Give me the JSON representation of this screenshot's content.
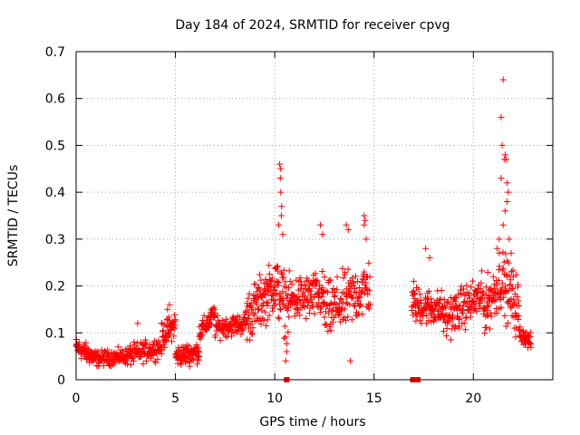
{
  "chart_data": {
    "type": "scatter",
    "title": "Day 184 of 2024, SRMTID for receiver cpvg",
    "xlabel": "GPS time / hours",
    "ylabel": "SRMTID / TECUs",
    "xlim": [
      0,
      24
    ],
    "ylim": [
      0,
      0.7
    ],
    "xticks": [
      0,
      5,
      10,
      15,
      20
    ],
    "yticks": [
      0,
      0.1,
      0.2,
      0.3,
      0.4,
      0.5,
      0.6,
      0.7
    ],
    "grid": true,
    "marker": "plus",
    "color": "#ff0000",
    "segments": [
      {
        "t0": 0.0,
        "t1": 1.0,
        "base": [
          0.07,
          0.045
        ],
        "spread": 0.018,
        "n": 80
      },
      {
        "t0": 1.0,
        "t1": 2.5,
        "base": [
          0.045,
          0.05
        ],
        "spread": 0.015,
        "n": 90
      },
      {
        "t0": 2.5,
        "t1": 4.3,
        "base": [
          0.05,
          0.07
        ],
        "spread": 0.02,
        "n": 110
      },
      {
        "t0": 4.3,
        "t1": 5.0,
        "base": [
          0.09,
          0.12
        ],
        "spread": 0.025,
        "n": 50
      },
      {
        "t0": 5.0,
        "t1": 6.2,
        "base": [
          0.05,
          0.06
        ],
        "spread": 0.02,
        "n": 90
      },
      {
        "t0": 6.2,
        "t1": 7.0,
        "base": [
          0.1,
          0.14
        ],
        "spread": 0.02,
        "n": 55
      },
      {
        "t0": 7.0,
        "t1": 8.5,
        "base": [
          0.11,
          0.12
        ],
        "spread": 0.02,
        "n": 90
      },
      {
        "t0": 8.5,
        "t1": 10.0,
        "base": [
          0.13,
          0.2
        ],
        "spread": 0.05,
        "n": 110
      },
      {
        "t0": 10.0,
        "t1": 10.7,
        "base": [
          0.2,
          0.15
        ],
        "spread": 0.06,
        "n": 50
      },
      {
        "t0": 10.7,
        "t1": 12.5,
        "base": [
          0.17,
          0.18
        ],
        "spread": 0.045,
        "n": 120
      },
      {
        "t0": 12.5,
        "t1": 14.8,
        "base": [
          0.14,
          0.2
        ],
        "spread": 0.055,
        "n": 140
      },
      {
        "t0": 16.9,
        "t1": 18.5,
        "base": [
          0.16,
          0.15
        ],
        "spread": 0.035,
        "n": 110
      },
      {
        "t0": 18.5,
        "t1": 20.5,
        "base": [
          0.13,
          0.18
        ],
        "spread": 0.04,
        "n": 130
      },
      {
        "t0": 20.5,
        "t1": 21.3,
        "base": [
          0.15,
          0.2
        ],
        "spread": 0.05,
        "n": 60
      },
      {
        "t0": 21.3,
        "t1": 22.3,
        "base": [
          0.22,
          0.15
        ],
        "spread": 0.06,
        "n": 70
      },
      {
        "t0": 22.3,
        "t1": 22.9,
        "base": [
          0.1,
          0.08
        ],
        "spread": 0.015,
        "n": 40
      }
    ],
    "highlights": [
      {
        "x": 10.25,
        "y": 0.46
      },
      {
        "x": 10.3,
        "y": 0.45
      },
      {
        "x": 10.28,
        "y": 0.43
      },
      {
        "x": 10.3,
        "y": 0.4
      },
      {
        "x": 10.35,
        "y": 0.37
      },
      {
        "x": 10.33,
        "y": 0.35
      },
      {
        "x": 10.4,
        "y": 0.31
      },
      {
        "x": 10.2,
        "y": 0.33
      },
      {
        "x": 10.6,
        "y": 0.06
      },
      {
        "x": 10.55,
        "y": 0.04
      },
      {
        "x": 12.3,
        "y": 0.33
      },
      {
        "x": 12.4,
        "y": 0.31
      },
      {
        "x": 13.6,
        "y": 0.33
      },
      {
        "x": 13.7,
        "y": 0.32
      },
      {
        "x": 13.8,
        "y": 0.04
      },
      {
        "x": 14.5,
        "y": 0.35
      },
      {
        "x": 14.55,
        "y": 0.34
      },
      {
        "x": 14.5,
        "y": 0.33
      },
      {
        "x": 14.6,
        "y": 0.3
      },
      {
        "x": 17.0,
        "y": 0.21
      },
      {
        "x": 17.6,
        "y": 0.28
      },
      {
        "x": 17.8,
        "y": 0.26
      },
      {
        "x": 3.1,
        "y": 0.12
      },
      {
        "x": 4.6,
        "y": 0.15
      },
      {
        "x": 4.7,
        "y": 0.16
      },
      {
        "x": 21.5,
        "y": 0.64
      },
      {
        "x": 21.4,
        "y": 0.56
      },
      {
        "x": 21.45,
        "y": 0.5
      },
      {
        "x": 21.6,
        "y": 0.48
      },
      {
        "x": 21.55,
        "y": 0.47
      },
      {
        "x": 21.65,
        "y": 0.47
      },
      {
        "x": 21.4,
        "y": 0.43
      },
      {
        "x": 21.7,
        "y": 0.42
      },
      {
        "x": 21.75,
        "y": 0.4
      },
      {
        "x": 21.7,
        "y": 0.38
      },
      {
        "x": 21.6,
        "y": 0.36
      },
      {
        "x": 21.5,
        "y": 0.33
      },
      {
        "x": 21.3,
        "y": 0.3
      },
      {
        "x": 21.8,
        "y": 0.3
      },
      {
        "x": 21.9,
        "y": 0.27
      },
      {
        "x": 21.2,
        "y": 0.28
      }
    ],
    "gap_markers": [
      {
        "x": 10.6,
        "y": 0.0
      },
      {
        "x": 16.95,
        "y": 0.0
      },
      {
        "x": 17.2,
        "y": 0.0
      }
    ]
  }
}
